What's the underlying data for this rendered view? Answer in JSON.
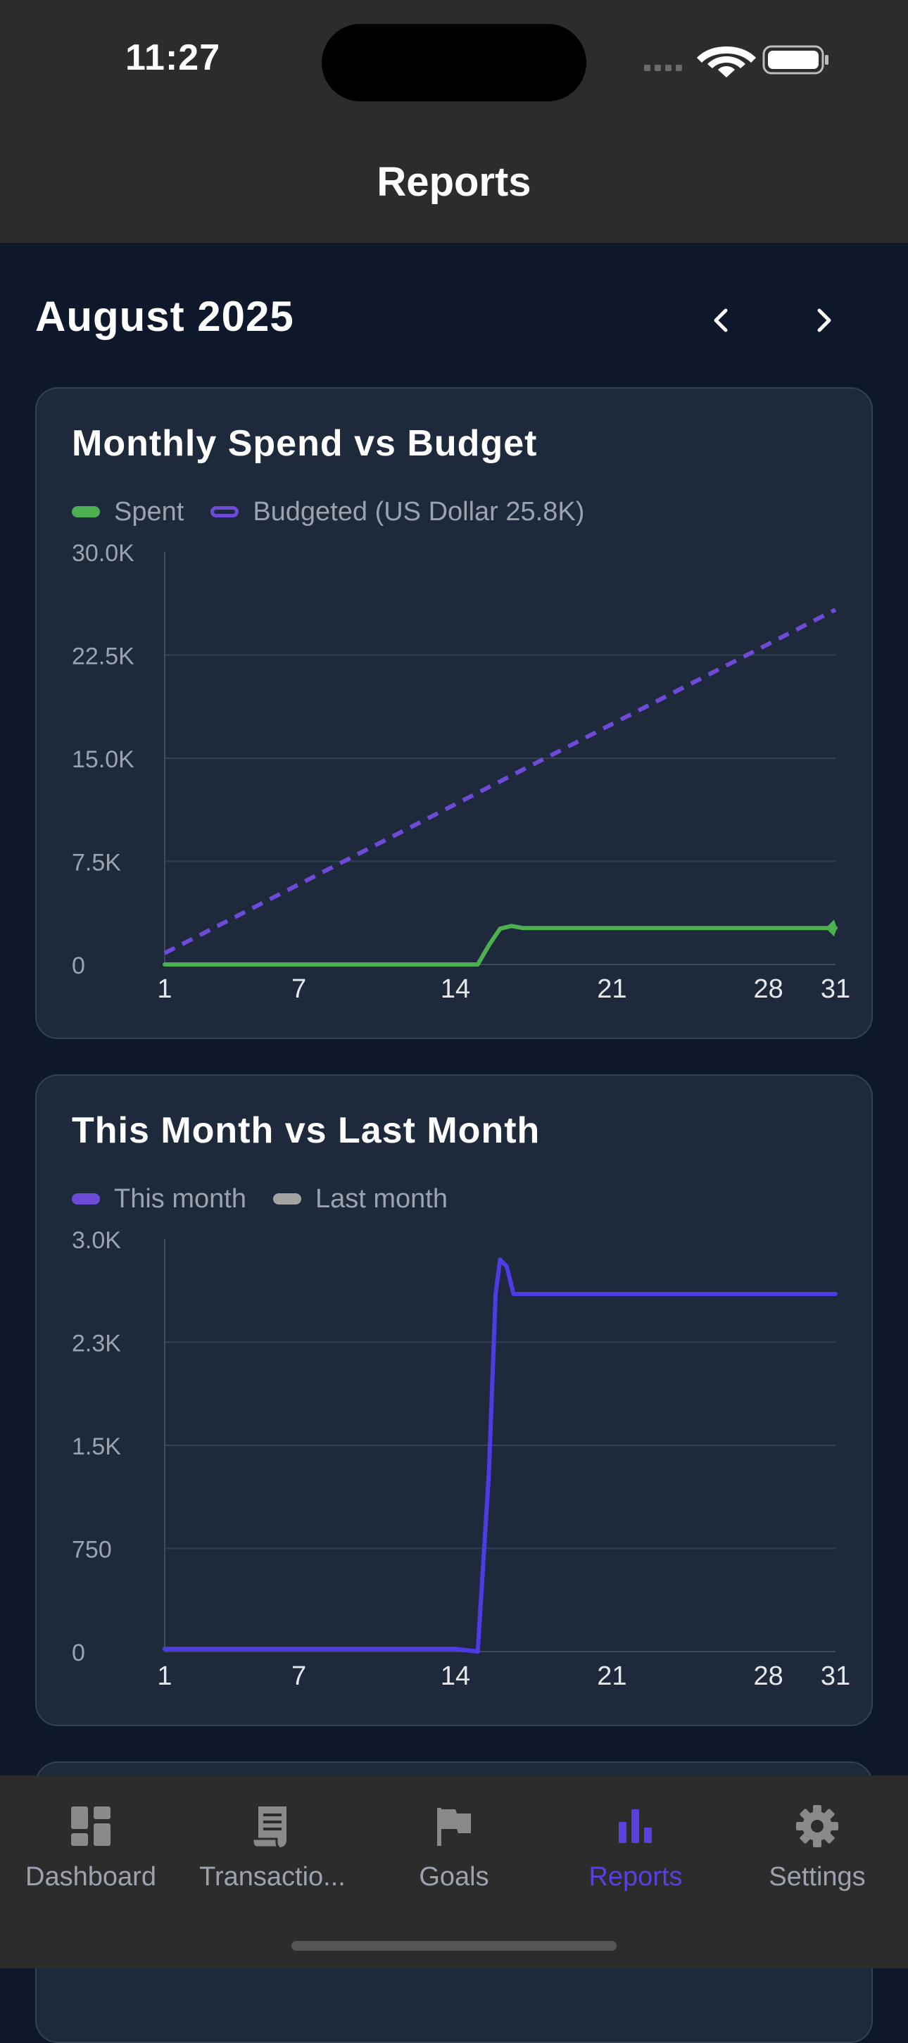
{
  "status_bar": {
    "time": "11:27"
  },
  "header": {
    "title": "Reports"
  },
  "month": {
    "label": "August 2025",
    "prev_icon": "chevron-left-icon",
    "next_icon": "chevron-right-icon"
  },
  "colors": {
    "spent": "#4caf50",
    "budget": "#6d4bd8",
    "this_month": "#4f3be6",
    "last_month": "#a3a3a3",
    "active_tab": "#5b3fe0"
  },
  "cards": [
    {
      "title": "Monthly Spend vs Budget",
      "legend": [
        {
          "label": "Spent",
          "style": "filled"
        },
        {
          "label": "Budgeted (US Dollar 25.8K)",
          "style": "outline"
        }
      ]
    },
    {
      "title": "This Month vs Last Month",
      "legend": [
        {
          "label": "This month",
          "style": "filled"
        },
        {
          "label": "Last month",
          "style": "filled"
        }
      ]
    }
  ],
  "chart_data": [
    {
      "type": "line",
      "title": "Monthly Spend vs Budget",
      "xlabel": "",
      "ylabel": "",
      "xlim": [
        1,
        31
      ],
      "ylim": [
        0,
        30000
      ],
      "y_ticks": [
        0,
        7500,
        15000,
        22500,
        30000
      ],
      "y_tick_labels": [
        "0",
        "7.5K",
        "15.0K",
        "22.5K",
        "30.0K"
      ],
      "x_ticks": [
        1,
        7,
        14,
        21,
        28,
        31
      ],
      "x_tick_labels": [
        "1",
        "7",
        "14",
        "21",
        "28",
        "31"
      ],
      "series": [
        {
          "name": "Spent",
          "style": "solid",
          "end_marker": true,
          "x": [
            1,
            14,
            15,
            15.5,
            16,
            16.5,
            17,
            18,
            31
          ],
          "y": [
            0,
            0,
            0,
            1400,
            2600,
            2800,
            2650,
            2650,
            2650
          ]
        },
        {
          "name": "Budgeted (US Dollar 25.8K)",
          "style": "dashed",
          "x": [
            1,
            31
          ],
          "y": [
            830,
            25800
          ]
        }
      ]
    },
    {
      "type": "line",
      "title": "This Month vs Last Month",
      "xlabel": "",
      "ylabel": "",
      "xlim": [
        1,
        31
      ],
      "ylim": [
        0,
        3000
      ],
      "y_ticks": [
        0,
        750,
        1500,
        2250,
        3000
      ],
      "y_tick_labels": [
        "0",
        "750",
        "1.5K",
        "2.3K",
        "3.0K"
      ],
      "x_ticks": [
        1,
        7,
        14,
        21,
        28,
        31
      ],
      "x_tick_labels": [
        "1",
        "7",
        "14",
        "21",
        "28",
        "31"
      ],
      "series": [
        {
          "name": "This month",
          "style": "solid",
          "x": [
            1,
            14,
            15,
            15.5,
            15.8,
            16,
            16.3,
            16.6,
            17,
            31
          ],
          "y": [
            20,
            20,
            0,
            1300,
            2600,
            2850,
            2800,
            2600,
            2600,
            2600
          ]
        }
      ]
    }
  ],
  "tabs": [
    {
      "label": "Dashboard",
      "icon": "dashboard-icon",
      "active": false
    },
    {
      "label": "Transactio...",
      "icon": "receipt-icon",
      "active": false
    },
    {
      "label": "Goals",
      "icon": "flag-icon",
      "active": false
    },
    {
      "label": "Reports",
      "icon": "bar-chart-icon",
      "active": true
    },
    {
      "label": "Settings",
      "icon": "gear-icon",
      "active": false
    }
  ]
}
